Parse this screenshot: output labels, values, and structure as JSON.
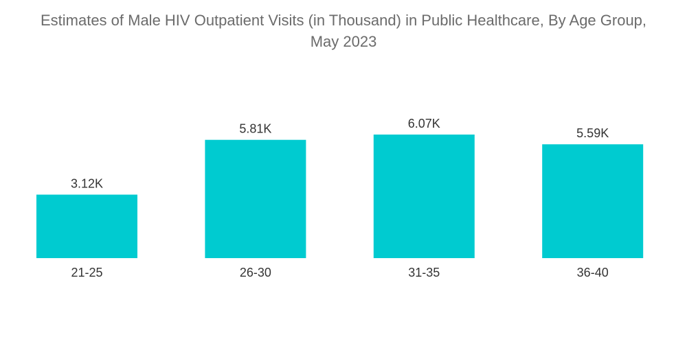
{
  "chart_data": {
    "type": "bar",
    "title_lines": [
      "Estimates of Male HIV Outpatient Visits (in Thousand) in Public Healthcare, By Age Group,",
      "May 2023"
    ],
    "categories": [
      "21-25",
      "26-30",
      "31-35",
      "36-40"
    ],
    "values": [
      3.12,
      5.81,
      6.07,
      5.59
    ],
    "data_labels": [
      "3.12K",
      "5.81K",
      "6.07K",
      "5.59K"
    ],
    "xlabel": "",
    "ylabel": "",
    "ylim": [
      0,
      6.07
    ],
    "grid": false,
    "legend": "none",
    "bar_color": "#00cbd0"
  }
}
